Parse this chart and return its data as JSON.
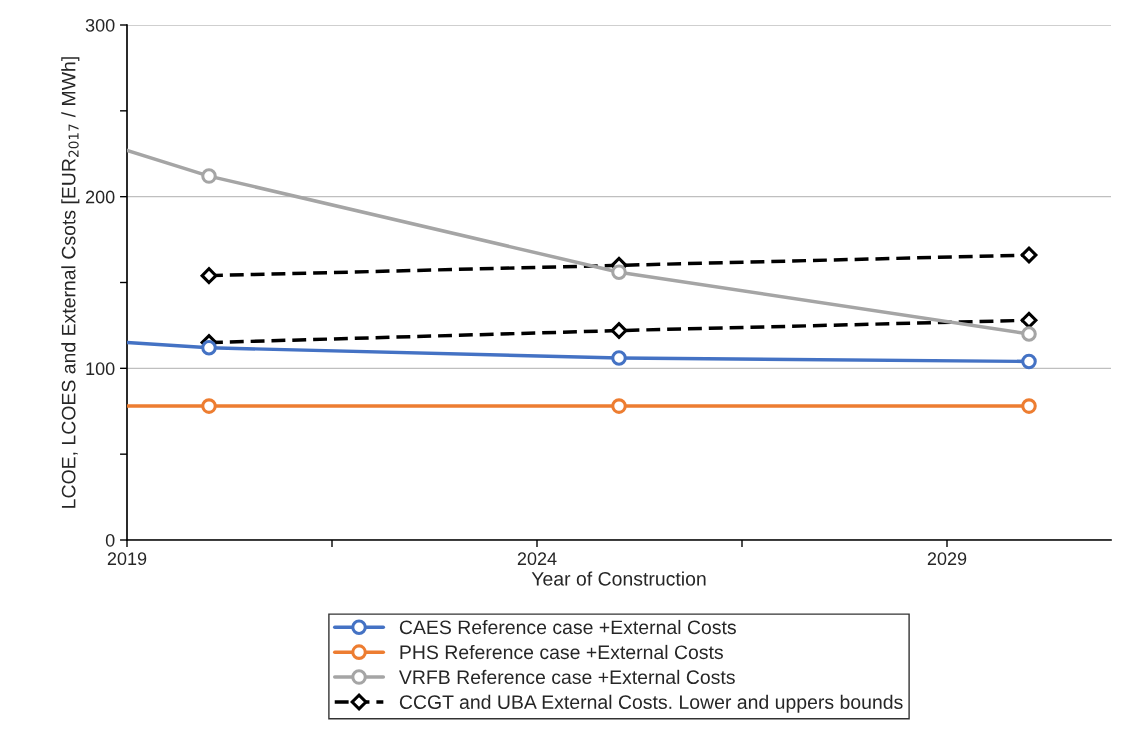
{
  "chart_data": {
    "type": "line",
    "xlabel": "Year of Construction",
    "ylabel": "LCOE, LCOES and External Csots [EUR$_{2017}$ / MWh]",
    "xlim": [
      2019,
      2031
    ],
    "ylim": [
      0,
      300
    ],
    "xticks": [
      2019,
      {
        "value": 2021.5,
        "label": null
      },
      2024,
      {
        "value": 2026.5,
        "label": null
      },
      2029
    ],
    "yticks": [
      0,
      {
        "value": 50,
        "label": null
      },
      100,
      {
        "value": 150,
        "label": null
      },
      200,
      {
        "value": 250,
        "label": null
      },
      300
    ],
    "grid": "y",
    "legend": "bottom",
    "series": [
      {
        "name": "CAES Reference case +External Costs",
        "color": "#4472c4",
        "x": [
          2020,
          2025,
          2030
        ],
        "values": [
          112,
          106,
          104
        ],
        "marker": "circle",
        "line_style": "solid"
      },
      {
        "name": "PHS Reference case +External Costs",
        "color": "#ed7d31",
        "x": [
          2020,
          2025,
          2030
        ],
        "values": [
          78,
          78,
          78
        ],
        "marker": "circle",
        "line_style": "solid"
      },
      {
        "name": "VRFB Reference case +External Costs",
        "color": "#a5a5a5",
        "x": [
          2020,
          2025,
          2030
        ],
        "values": [
          212,
          156,
          120
        ],
        "marker": "circle",
        "line_style": "solid"
      },
      {
        "name": "CCGT and UBA External Costs. Lower and uppers bounds",
        "color": "#000000",
        "x": [
          2020,
          2025,
          2030
        ],
        "values": [
          115,
          122,
          128
        ],
        "marker": "diamond",
        "line_style": "dashed"
      },
      {
        "color": "#000000",
        "x": [
          2020,
          2025,
          2030
        ],
        "values": [
          154,
          160,
          166
        ],
        "marker": "diamond",
        "line_style": "dashed"
      },
      {
        "color": "#4472c4",
        "x": [
          2019,
          2020
        ],
        "values": [
          115,
          112
        ],
        "marker": "none",
        "line_style": "solid"
      },
      {
        "color": "#ed7d31",
        "x": [
          2019,
          2020
        ],
        "values": [
          78,
          78
        ],
        "marker": "none",
        "line_style": "solid"
      },
      {
        "color": "#a5a5a5",
        "x": [
          2019,
          2020
        ],
        "values": [
          227,
          212
        ],
        "marker": "none",
        "line_style": "solid"
      }
    ]
  }
}
